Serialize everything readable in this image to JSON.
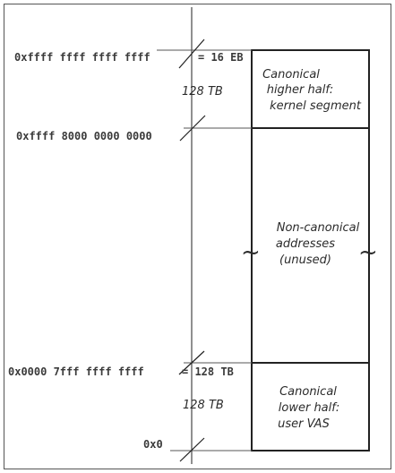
{
  "addresses": {
    "top": "0xffff ffff ffff ffff",
    "kernel_start": "0xffff 8000 0000 0000",
    "user_end": "0x0000 7fff ffff ffff",
    "zero": "0x0"
  },
  "sizes": {
    "top_total": "= 16 EB",
    "user_end_size": "= 128 TB",
    "kernel_span": "128 TB",
    "user_span": "128 TB"
  },
  "regions": {
    "higher_half": [
      "Canonical",
      "higher half:",
      "kernel segment"
    ],
    "non_canonical": [
      "Non-canonical",
      "addresses",
      "(unused)"
    ],
    "lower_half": [
      "Canonical",
      "lower half:",
      "user VAS"
    ]
  },
  "break_marks": [
    "~",
    "~"
  ]
}
